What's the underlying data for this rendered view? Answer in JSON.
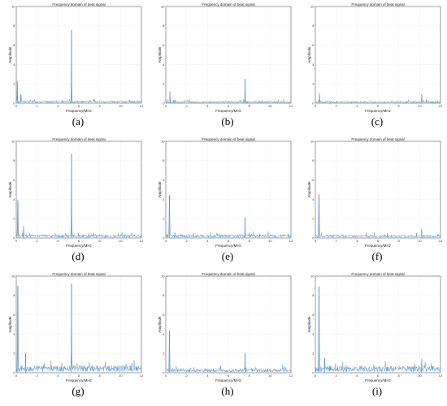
{
  "chart_data": [
    {
      "id": "a",
      "caption": "(a)",
      "type": "line",
      "title": "Frequency domain of beat signal",
      "xlabel": "Frequency/MHz",
      "ylabel": "Amplitude",
      "xlim": [
        0,
        12
      ],
      "ylim": [
        0,
        10
      ],
      "xticks": [
        0,
        2,
        4,
        6,
        8,
        10,
        12
      ],
      "yticks": [
        0,
        2,
        4,
        6,
        8,
        10
      ],
      "grid": true,
      "color": "#4a90c8",
      "noise_level": 0.25,
      "peaks": [
        {
          "x": 0.1,
          "y": 2.3
        },
        {
          "x": 0.45,
          "y": 0.9
        },
        {
          "x": 5.3,
          "y": 7.6
        }
      ]
    },
    {
      "id": "b",
      "caption": "(b)",
      "type": "line",
      "title": "Frequency domain of beat signal",
      "xlabel": "Frequency/MHz",
      "ylabel": "Amplitude",
      "xlim": [
        0,
        12
      ],
      "ylim": [
        0,
        10
      ],
      "xticks": [
        0,
        2,
        4,
        6,
        8,
        10,
        12
      ],
      "yticks": [
        0,
        2,
        4,
        6,
        8,
        10
      ],
      "grid": true,
      "color": "#4a90c8",
      "noise_level": 0.2,
      "peaks": [
        {
          "x": 0.4,
          "y": 1.2
        },
        {
          "x": 7.6,
          "y": 2.5
        }
      ]
    },
    {
      "id": "c",
      "caption": "(c)",
      "type": "line",
      "title": "Frequency domain of beat signal",
      "xlabel": "Frequency/MHz",
      "ylabel": "Amplitude",
      "xlim": [
        0,
        12
      ],
      "ylim": [
        0,
        10
      ],
      "xticks": [
        0,
        2,
        4,
        6,
        8,
        10,
        12
      ],
      "yticks": [
        0,
        2,
        4,
        6,
        8,
        10
      ],
      "grid": true,
      "color": "#4a90c8",
      "noise_level": 0.2,
      "peaks": [
        {
          "x": 0.4,
          "y": 1.0
        },
        {
          "x": 10.2,
          "y": 0.9
        }
      ]
    },
    {
      "id": "d",
      "caption": "(d)",
      "type": "line",
      "title": "Frequency domain of beat signal",
      "xlabel": "Frequency/MHz",
      "ylabel": "Amplitude",
      "xlim": [
        0,
        12
      ],
      "ylim": [
        0,
        10
      ],
      "xticks": [
        0,
        2,
        4,
        6,
        8,
        10,
        12
      ],
      "yticks": [
        0,
        2,
        4,
        6,
        8,
        10
      ],
      "grid": true,
      "color": "#4a90c8",
      "noise_level": 0.35,
      "peaks": [
        {
          "x": 0.15,
          "y": 3.9
        },
        {
          "x": 0.7,
          "y": 1.2
        },
        {
          "x": 5.3,
          "y": 8.7
        }
      ]
    },
    {
      "id": "e",
      "caption": "(e)",
      "type": "line",
      "title": "Frequency domain of beat signal",
      "xlabel": "Frequency/MHz",
      "ylabel": "Amplitude",
      "xlim": [
        0,
        12
      ],
      "ylim": [
        0,
        10
      ],
      "xticks": [
        0,
        2,
        4,
        6,
        8,
        10,
        12
      ],
      "yticks": [
        0,
        2,
        4,
        6,
        8,
        10
      ],
      "grid": true,
      "color": "#4a90c8",
      "noise_level": 0.35,
      "peaks": [
        {
          "x": 0.35,
          "y": 4.4
        },
        {
          "x": 7.6,
          "y": 2.1
        }
      ]
    },
    {
      "id": "f",
      "caption": "(f)",
      "type": "line",
      "title": "Frequency domain of beat signal",
      "xlabel": "Frequency/MHz",
      "ylabel": "Amplitude",
      "xlim": [
        0,
        12
      ],
      "ylim": [
        0,
        10
      ],
      "xticks": [
        0,
        2,
        4,
        6,
        8,
        10,
        12
      ],
      "yticks": [
        0,
        2,
        4,
        6,
        8,
        10
      ],
      "grid": true,
      "color": "#4a90c8",
      "noise_level": 0.3,
      "peaks": [
        {
          "x": 0.35,
          "y": 4.5
        },
        {
          "x": 10.2,
          "y": 0.9
        }
      ]
    },
    {
      "id": "g",
      "caption": "(g)",
      "type": "line",
      "title": "Frequency domain of beat signal",
      "xlabel": "Frequency/MHz",
      "ylabel": "Amplitude",
      "xlim": [
        0,
        12
      ],
      "ylim": [
        0,
        10
      ],
      "xticks": [
        0,
        2,
        4,
        6,
        8,
        10,
        12
      ],
      "yticks": [
        0,
        2,
        4,
        6,
        8,
        10
      ],
      "grid": true,
      "color": "#4a90c8",
      "noise_level": 0.75,
      "peaks": [
        {
          "x": 0.15,
          "y": 9.0
        },
        {
          "x": 0.9,
          "y": 2.0
        },
        {
          "x": 5.3,
          "y": 9.2
        }
      ]
    },
    {
      "id": "h",
      "caption": "(h)",
      "type": "line",
      "title": "Frequency domain of beat signal",
      "xlabel": "Frequency/MHz",
      "ylabel": "Amplitude",
      "xlim": [
        0,
        12
      ],
      "ylim": [
        0,
        10
      ],
      "xticks": [
        0,
        2,
        4,
        6,
        8,
        10,
        12
      ],
      "yticks": [
        0,
        2,
        4,
        6,
        8,
        10
      ],
      "grid": true,
      "color": "#4a90c8",
      "noise_level": 0.4,
      "peaks": [
        {
          "x": 0.35,
          "y": 4.3
        },
        {
          "x": 7.6,
          "y": 2.0
        }
      ]
    },
    {
      "id": "i",
      "caption": "(i)",
      "type": "line",
      "title": "Frequency domain of beat signal",
      "xlabel": "Frequency/MHz",
      "ylabel": "Amplitude",
      "xlim": [
        0,
        12
      ],
      "ylim": [
        0,
        10
      ],
      "xticks": [
        0,
        2,
        4,
        6,
        8,
        10,
        12
      ],
      "yticks": [
        0,
        2,
        4,
        6,
        8,
        10
      ],
      "grid": true,
      "color": "#4a90c8",
      "noise_level": 0.7,
      "peaks": [
        {
          "x": 0.35,
          "y": 8.9
        },
        {
          "x": 0.9,
          "y": 1.5
        },
        {
          "x": 10.2,
          "y": 1.4
        }
      ]
    }
  ]
}
